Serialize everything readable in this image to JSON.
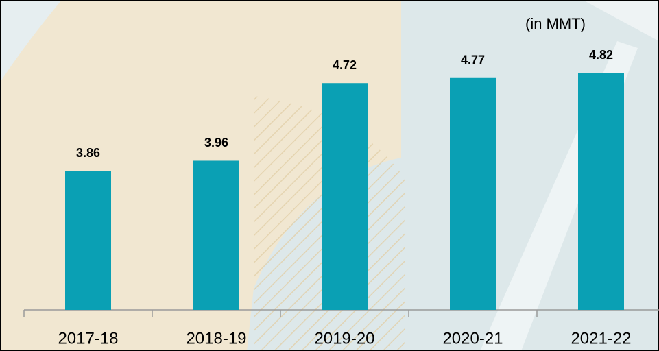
{
  "chart_data": {
    "type": "bar",
    "annotation": "(in MMT)",
    "categories": [
      "2017-18",
      "2018-19",
      "2019-20",
      "2020-21",
      "2021-22"
    ],
    "values": [
      3.86,
      3.96,
      4.72,
      4.77,
      4.82
    ],
    "color": "#0aa0b4",
    "ylim": [
      2.5,
      5.0
    ]
  }
}
